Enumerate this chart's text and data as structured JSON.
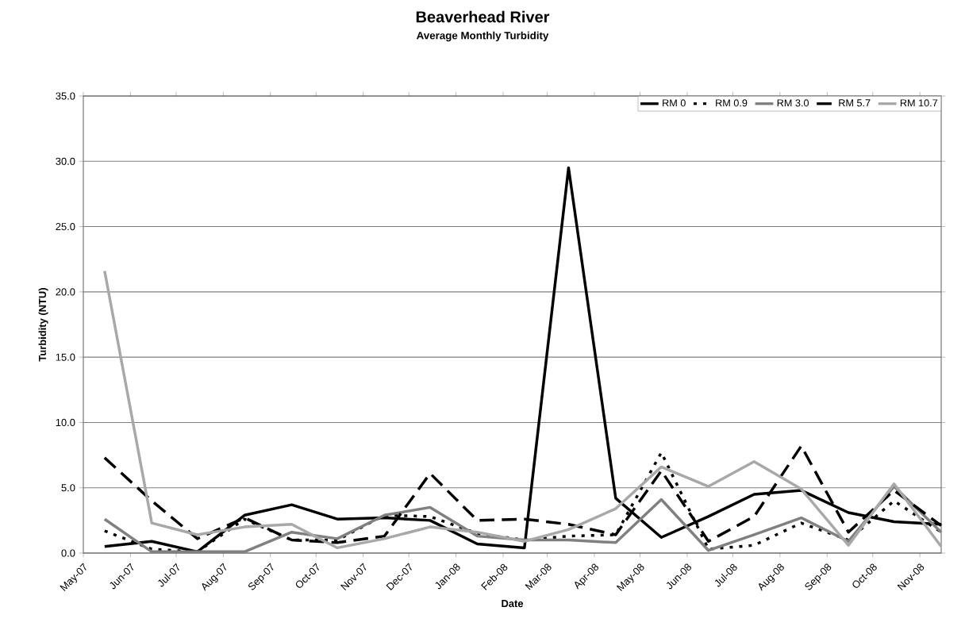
{
  "chart_data": {
    "type": "line",
    "title": "Beaverhead River",
    "subtitle": "Average Monthly Turbidity",
    "xlabel": "Date",
    "ylabel": "Turbidity (NTU)",
    "x": [
      "2007-05-15",
      "2007-06-15",
      "2007-07-15",
      "2007-08-15",
      "2007-09-15",
      "2007-10-15",
      "2007-11-15",
      "2007-12-15",
      "2008-01-15",
      "2008-02-15",
      "2008-03-15",
      "2008-04-15",
      "2008-05-15",
      "2008-06-15",
      "2008-07-15",
      "2008-08-15",
      "2008-09-15",
      "2008-10-15",
      "2008-11-15"
    ],
    "series": [
      {
        "name": "RM 0",
        "color": "#000000",
        "line_style": "solid",
        "values": [
          0.5,
          0.9,
          0.1,
          2.9,
          3.7,
          2.6,
          2.7,
          2.5,
          0.7,
          0.4,
          29.5,
          4.2,
          1.2,
          2.8,
          4.5,
          4.8,
          3.1,
          2.4,
          2.2
        ]
      },
      {
        "name": "RM 0.9",
        "color": "#000000",
        "line_style": "dotted",
        "values": [
          1.7,
          0.3,
          0.1,
          2.6,
          1.0,
          1.0,
          2.9,
          2.8,
          1.5,
          1.0,
          1.3,
          1.4,
          7.7,
          0.3,
          0.6,
          2.3,
          1.0,
          4.0,
          1.6
        ]
      },
      {
        "name": "RM 3.0",
        "color": "#808080",
        "line_style": "solid",
        "values": [
          2.6,
          0.1,
          0.1,
          0.1,
          1.6,
          1.1,
          2.9,
          3.5,
          1.3,
          1.0,
          1.0,
          0.8,
          4.1,
          0.2,
          1.4,
          2.7,
          0.9,
          5.1,
          1.6
        ]
      },
      {
        "name": "RM 5.7",
        "color": "#000000",
        "line_style": "dashed",
        "values": [
          7.3,
          4.0,
          1.1,
          2.7,
          1.0,
          0.8,
          1.3,
          6.1,
          2.5,
          2.6,
          2.2,
          1.4,
          6.3,
          0.9,
          2.8,
          8.2,
          1.6,
          4.8,
          2.1
        ]
      },
      {
        "name": "RM 10.7",
        "color": "#a8a8a8",
        "line_style": "solid",
        "values": [
          21.6,
          2.3,
          1.4,
          2.0,
          2.2,
          0.4,
          1.1,
          2.0,
          1.6,
          0.9,
          1.8,
          3.4,
          6.6,
          5.1,
          7.0,
          4.9,
          0.6,
          5.3,
          0.5
        ]
      }
    ],
    "xlim": [
      "2007-05-01",
      "2008-11-15"
    ],
    "xticks": [
      {
        "value": "2007-05-01",
        "label": "May-07"
      },
      {
        "value": "2007-06-01",
        "label": "Jun-07"
      },
      {
        "value": "2007-07-01",
        "label": "Jul-07"
      },
      {
        "value": "2007-08-01",
        "label": "Aug-07"
      },
      {
        "value": "2007-09-01",
        "label": "Sep-07"
      },
      {
        "value": "2007-10-01",
        "label": "Oct-07"
      },
      {
        "value": "2007-11-01",
        "label": "Nov-07"
      },
      {
        "value": "2007-12-01",
        "label": "Dec-07"
      },
      {
        "value": "2008-01-01",
        "label": "Jan-08"
      },
      {
        "value": "2008-02-01",
        "label": "Feb-08"
      },
      {
        "value": "2008-03-01",
        "label": "Mar-08"
      },
      {
        "value": "2008-04-01",
        "label": "Apr-08"
      },
      {
        "value": "2008-05-01",
        "label": "May-08"
      },
      {
        "value": "2008-06-01",
        "label": "Jun-08"
      },
      {
        "value": "2008-07-01",
        "label": "Jul-08"
      },
      {
        "value": "2008-08-01",
        "label": "Aug-08"
      },
      {
        "value": "2008-09-01",
        "label": "Sep-08"
      },
      {
        "value": "2008-10-01",
        "label": "Oct-08"
      },
      {
        "value": "2008-11-01",
        "label": "Nov-08"
      }
    ],
    "ylim": [
      0,
      35
    ],
    "yticks": [
      {
        "value": 0,
        "label": "0.0"
      },
      {
        "value": 5,
        "label": "5.0"
      },
      {
        "value": 10,
        "label": "10.0"
      },
      {
        "value": 15,
        "label": "15.0"
      },
      {
        "value": 20,
        "label": "20.0"
      },
      {
        "value": 25,
        "label": "25.0"
      },
      {
        "value": 30,
        "label": "30.0"
      },
      {
        "value": 35,
        "label": "35.0"
      }
    ],
    "grid": "y",
    "legend": "top right",
    "marker": "none"
  }
}
